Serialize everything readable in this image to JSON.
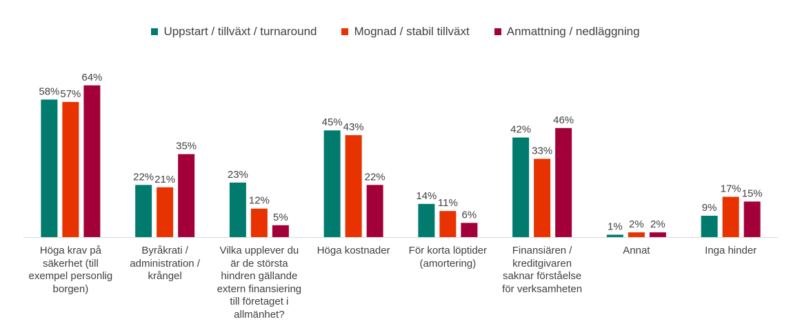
{
  "chart_data": {
    "type": "bar",
    "categories": [
      "Höga krav på\nsäkerhet (till\nexempel personlig\nborgen)",
      "Byråkrati /\nadministration /\nkrångel",
      "Vilka upplever du\när de största\nhindren gällande\nextern finansiering\ntill företaget i\nallmänhet?",
      "Höga kostnader",
      "För korta löptider\n(amortering)",
      "Finansiären /\nkreditgivaren\nsaknar förståelse\nför verksamheten",
      "Annat",
      "Inga hinder"
    ],
    "series": [
      {
        "name": "Uppstart / tillväxt / turnaround",
        "color": "#007B6E",
        "values": [
          58,
          22,
          23,
          45,
          14,
          42,
          1,
          9
        ]
      },
      {
        "name": "Mognad / stabil tillväxt",
        "color": "#E83200",
        "values": [
          57,
          21,
          12,
          43,
          11,
          33,
          2,
          17
        ]
      },
      {
        "name": "Anmattning / nedläggning",
        "color": "#A3003A",
        "values": [
          64,
          35,
          5,
          22,
          6,
          46,
          2,
          15
        ]
      }
    ],
    "value_suffix": "%",
    "ylim": [
      0,
      70
    ],
    "legend": "top-center",
    "grid": false
  }
}
